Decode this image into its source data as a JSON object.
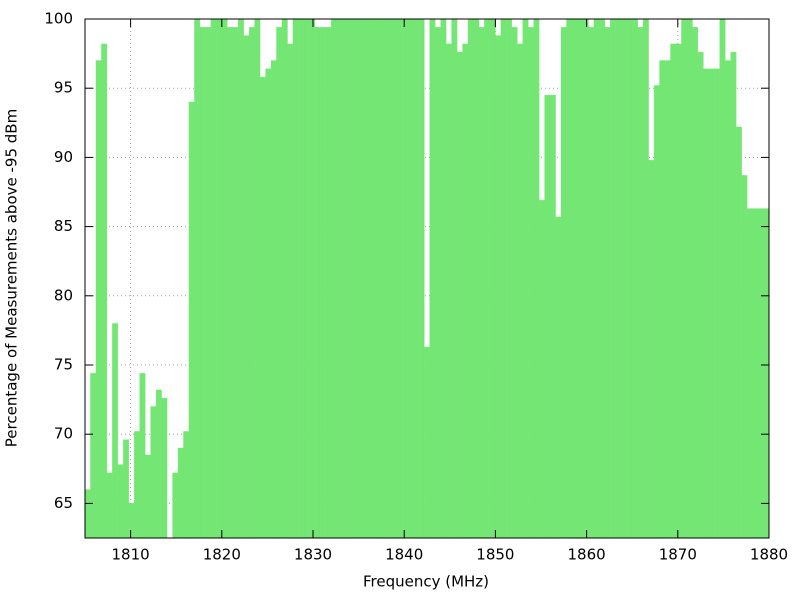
{
  "chart_data": {
    "type": "bar",
    "xlabel": "Frequency (MHz)",
    "ylabel": "Percentage of Measurements above -95 dBm",
    "color": "#80ff80",
    "grid": true,
    "xlim": [
      1805,
      1880
    ],
    "xticks": [
      1810,
      1820,
      1830,
      1840,
      1850,
      1860,
      1870,
      1880
    ],
    "ylim": [
      62.5,
      100
    ],
    "yticks": [
      65,
      70,
      75,
      80,
      85,
      90,
      95,
      100
    ],
    "x": [
      1805.3,
      1805.9,
      1806.5,
      1807.1,
      1807.7,
      1808.3,
      1808.9,
      1809.5,
      1810.1,
      1810.7,
      1811.3,
      1811.9,
      1812.5,
      1813.1,
      1813.7,
      1814.3,
      1814.9,
      1815.5,
      1816.1,
      1816.7,
      1817.3,
      1817.9,
      1818.5,
      1819.1,
      1819.7,
      1820.3,
      1820.9,
      1821.5,
      1822.1,
      1822.7,
      1823.3,
      1823.9,
      1824.5,
      1825.1,
      1825.7,
      1826.3,
      1826.9,
      1827.5,
      1828.1,
      1828.7,
      1829.3,
      1829.9,
      1830.5,
      1831.1,
      1831.7,
      1832.3,
      1832.9,
      1833.5,
      1834.1,
      1834.7,
      1835.3,
      1835.9,
      1836.5,
      1837.1,
      1837.7,
      1838.3,
      1838.9,
      1839.5,
      1840.1,
      1840.7,
      1841.3,
      1841.9,
      1842.5,
      1843.1,
      1843.7,
      1844.3,
      1844.9,
      1845.5,
      1846.1,
      1846.7,
      1847.3,
      1847.9,
      1848.5,
      1849.1,
      1849.7,
      1850.3,
      1850.9,
      1851.5,
      1852.1,
      1852.7,
      1853.3,
      1853.9,
      1854.5,
      1855.1,
      1855.7,
      1856.3,
      1856.9,
      1857.5,
      1858.1,
      1858.7,
      1859.3,
      1859.9,
      1860.5,
      1861.1,
      1861.7,
      1862.3,
      1862.9,
      1863.5,
      1864.1,
      1864.7,
      1865.3,
      1865.9,
      1866.5,
      1867.1,
      1867.7,
      1868.3,
      1868.9,
      1869.5,
      1870.1,
      1870.7,
      1871.3,
      1871.9,
      1872.5,
      1873.1,
      1873.7,
      1874.3,
      1874.9,
      1875.5,
      1876.1,
      1876.7,
      1877.3,
      1877.9,
      1878.5,
      1879.1,
      1879.7
    ],
    "values": [
      66,
      74.4,
      97,
      98.2,
      67.2,
      78,
      67.8,
      69.6,
      65,
      70.2,
      74.4,
      68.5,
      72,
      73.2,
      72.6,
      null,
      67.2,
      69,
      70.2,
      94,
      100,
      99.4,
      99.4,
      100,
      100,
      100,
      99.4,
      99.4,
      100,
      98.8,
      99.4,
      100,
      95.8,
      96.4,
      97,
      99.4,
      100,
      98.2,
      100,
      100,
      100,
      100,
      99.4,
      99.4,
      99.4,
      100,
      100,
      100,
      100,
      100,
      100,
      100,
      100,
      100,
      100,
      100,
      100,
      100,
      100,
      100,
      100,
      100,
      76.3,
      100,
      99.4,
      100,
      98.2,
      100,
      97.6,
      98.2,
      100,
      100,
      99.4,
      100,
      100,
      98.8,
      100,
      100,
      99.4,
      98.2,
      100,
      99.4,
      100,
      86.9,
      94.5,
      94.5,
      85.7,
      99.4,
      100,
      100,
      100,
      100,
      99.4,
      100,
      100,
      99.4,
      100,
      100,
      100,
      100,
      100,
      99.4,
      100,
      89.8,
      95.2,
      97,
      97,
      98.2,
      98.2,
      100,
      100,
      99.4,
      97.6,
      96.4,
      96.4,
      96.4,
      100,
      97,
      97.6,
      92.2,
      88.7,
      86.3,
      86.3,
      86.3,
      86.3
    ]
  }
}
